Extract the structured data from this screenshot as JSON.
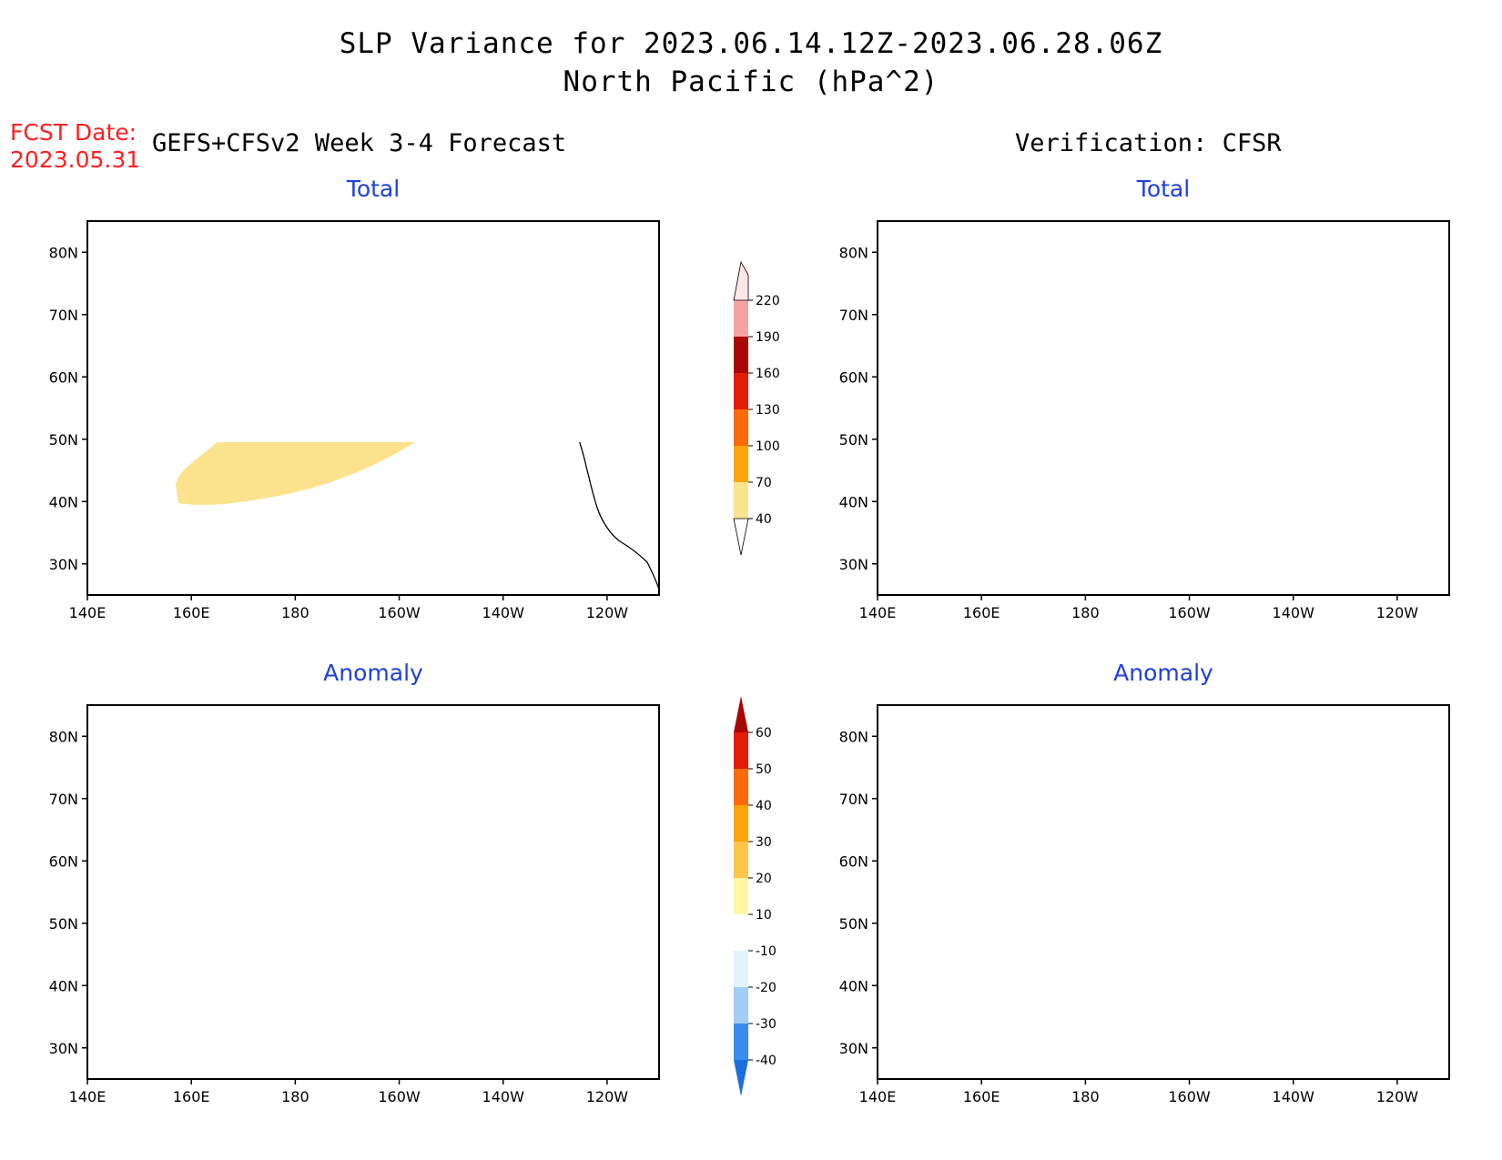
{
  "title": {
    "line1": "SLP Variance for 2023.06.14.12Z-2023.06.28.06Z",
    "line2": "North Pacific (hPa^2)"
  },
  "fcst": {
    "label": "FCST Date:",
    "date": "2023.05.31"
  },
  "left_header": "GEFS+CFSv2 Week 3-4 Forecast",
  "right_header": "Verification: CFSR",
  "panels": {
    "tl": {
      "title": "Total"
    },
    "tr": {
      "title": "Total"
    },
    "bl": {
      "title": "Anomaly"
    },
    "br": {
      "title": "Anomaly"
    }
  },
  "axes": {
    "lon_labels": [
      "140E",
      "160E",
      "180",
      "160W",
      "140W",
      "120W"
    ],
    "lon_values": [
      140,
      160,
      180,
      200,
      220,
      240
    ],
    "lat_labels": [
      "30N",
      "40N",
      "50N",
      "60N",
      "70N",
      "80N"
    ],
    "lat_values": [
      30,
      40,
      50,
      60,
      70,
      80
    ],
    "lon_range": [
      140,
      250
    ],
    "lat_range": [
      25,
      85
    ]
  },
  "colorbar_total": {
    "levels": [
      "40",
      "70",
      "100",
      "130",
      "160",
      "190",
      "220"
    ],
    "colors": [
      "#fbe38e",
      "#fca50a",
      "#fb6b0a",
      "#e31c0a",
      "#a80505",
      "#f4a3a3",
      "#fde6e6"
    ]
  },
  "colorbar_anomaly": {
    "levels": [
      "-40",
      "-30",
      "-20",
      "-10",
      "10",
      "20",
      "30",
      "40",
      "50",
      "60"
    ],
    "colors": [
      "#1a6fdc",
      "#3a8cef",
      "#9fcdf5",
      "#dff5fb",
      "#ffffff",
      "#fff6a6",
      "#fcc54a",
      "#fca50a",
      "#fb6b0a",
      "#e31c0a",
      "#a80505"
    ]
  }
}
